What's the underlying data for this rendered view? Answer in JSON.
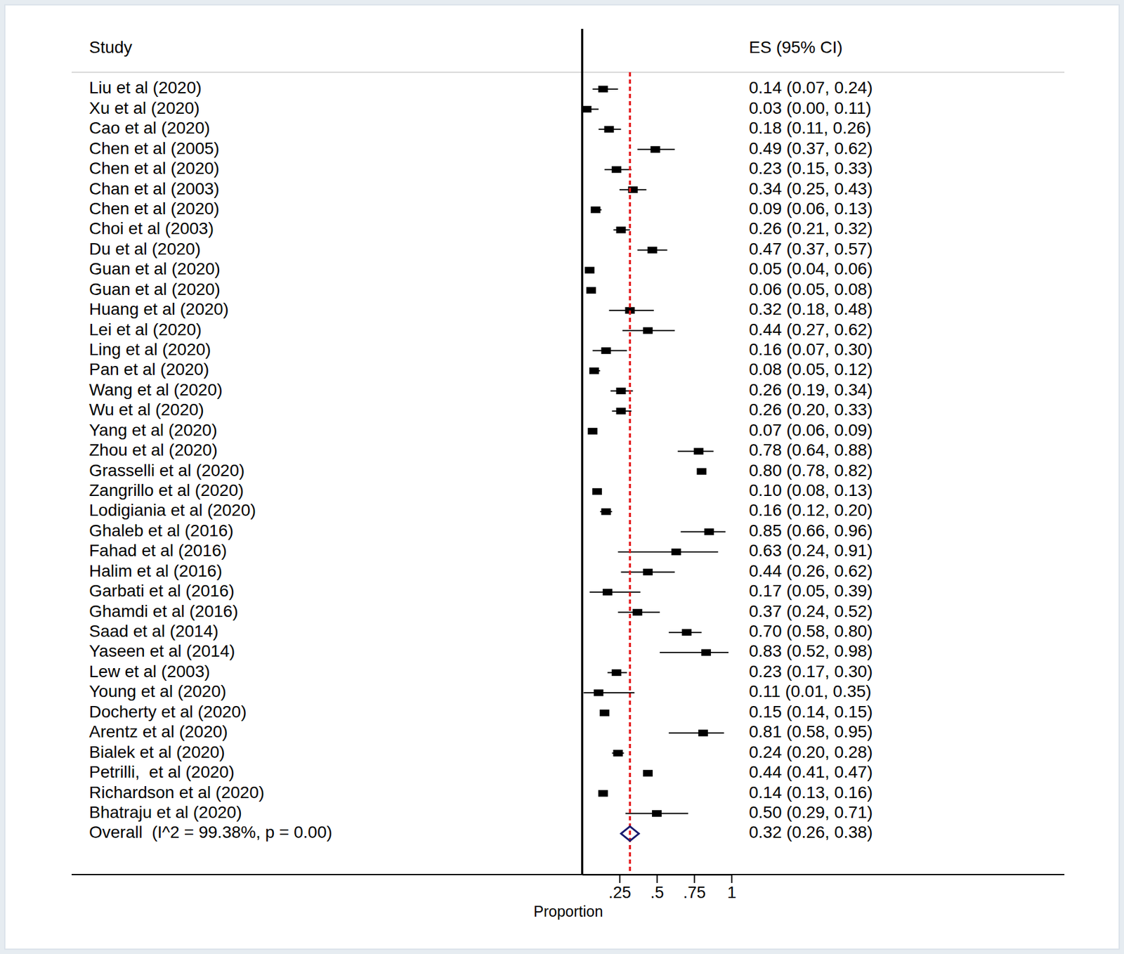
{
  "chart_data": {
    "type": "forest",
    "study_header": "Study",
    "es_header": "ES (95% CI)",
    "xlabel": "Proportion",
    "xlim": [
      0,
      1
    ],
    "xticks": [
      {
        "value": 0.25,
        "label": ".25"
      },
      {
        "value": 0.5,
        "label": ".5"
      },
      {
        "value": 0.75,
        "label": ".75"
      },
      1
    ],
    "color": "#000000",
    "categories": [
      "Liu et al (2020)",
      "Xu et al (2020)",
      "Cao et al (2020)",
      "Chen et al (2005)",
      "Chen et al (2020)",
      "Chan et al (2003)",
      "Chen et al (2020)",
      "Choi et al (2003)",
      "Du et al (2020)",
      "Guan et al (2020)",
      "Guan et al (2020)",
      "Huang et al (2020)",
      "Lei et al (2020)",
      "Ling et al (2020)",
      "Pan et al (2020)",
      "Wang et al (2020)",
      "Wu et al (2020)",
      "Yang et al (2020)",
      "Zhou et al (2020)",
      "Grasselli et al (2020)",
      "Zangrillo et al (2020)",
      "Lodigiania et al (2020)",
      "Ghaleb et al (2016)",
      "Fahad et al (2016)",
      "Halim et al (2016)",
      "Garbati et al (2016)",
      "Ghamdi et al (2016)",
      "Saad et al (2014)",
      "Yaseen et al (2014)",
      "Lew et al (2003)",
      "Young et al (2020)",
      "Docherty et al (2020)",
      "Arentz et al (2020)",
      "Bialek et al (2020)",
      "Petrilli,  et al (2020)",
      "Richardson et al (2020)",
      "Bhatraju et al (2020)"
    ],
    "values": [
      0.14,
      0.03,
      0.18,
      0.49,
      0.23,
      0.34,
      0.09,
      0.26,
      0.47,
      0.05,
      0.06,
      0.32,
      0.44,
      0.16,
      0.08,
      0.26,
      0.26,
      0.07,
      0.78,
      0.8,
      0.1,
      0.16,
      0.85,
      0.63,
      0.44,
      0.17,
      0.37,
      0.7,
      0.83,
      0.23,
      0.11,
      0.15,
      0.81,
      0.24,
      0.44,
      0.14,
      0.5
    ],
    "lower": [
      0.07,
      0.0,
      0.11,
      0.37,
      0.15,
      0.25,
      0.06,
      0.21,
      0.37,
      0.04,
      0.05,
      0.18,
      0.27,
      0.07,
      0.05,
      0.19,
      0.2,
      0.06,
      0.64,
      0.78,
      0.08,
      0.12,
      0.66,
      0.24,
      0.26,
      0.05,
      0.24,
      0.58,
      0.52,
      0.17,
      0.01,
      0.14,
      0.58,
      0.2,
      0.41,
      0.13,
      0.29
    ],
    "upper": [
      0.24,
      0.11,
      0.26,
      0.62,
      0.33,
      0.43,
      0.13,
      0.32,
      0.57,
      0.06,
      0.08,
      0.48,
      0.62,
      0.3,
      0.12,
      0.34,
      0.33,
      0.09,
      0.88,
      0.82,
      0.13,
      0.2,
      0.96,
      0.91,
      0.62,
      0.39,
      0.52,
      0.8,
      0.98,
      0.3,
      0.35,
      0.15,
      0.95,
      0.28,
      0.47,
      0.16,
      0.71
    ],
    "value_labels": [
      "0.14 (0.07, 0.24)",
      "0.03 (0.00, 0.11)",
      "0.18 (0.11, 0.26)",
      "0.49 (0.37, 0.62)",
      "0.23 (0.15, 0.33)",
      "0.34 (0.25, 0.43)",
      "0.09 (0.06, 0.13)",
      "0.26 (0.21, 0.32)",
      "0.47 (0.37, 0.57)",
      "0.05 (0.04, 0.06)",
      "0.06 (0.05, 0.08)",
      "0.32 (0.18, 0.48)",
      "0.44 (0.27, 0.62)",
      "0.16 (0.07, 0.30)",
      "0.08 (0.05, 0.12)",
      "0.26 (0.19, 0.34)",
      "0.26 (0.20, 0.33)",
      "0.07 (0.06, 0.09)",
      "0.78 (0.64, 0.88)",
      "0.80 (0.78, 0.82)",
      "0.10 (0.08, 0.13)",
      "0.16 (0.12, 0.20)",
      "0.85 (0.66, 0.96)",
      "0.63 (0.24, 0.91)",
      "0.44 (0.26, 0.62)",
      "0.17 (0.05, 0.39)",
      "0.37 (0.24, 0.52)",
      "0.70 (0.58, 0.80)",
      "0.83 (0.52, 0.98)",
      "0.23 (0.17, 0.30)",
      "0.11 (0.01, 0.35)",
      "0.15 (0.14, 0.15)",
      "0.81 (0.58, 0.95)",
      "0.24 (0.20, 0.28)",
      "0.44 (0.41, 0.47)",
      "0.14 (0.13, 0.16)",
      "0.50 (0.29, 0.71)"
    ],
    "data_labels": true,
    "overall": {
      "label": "Overall  (I^2 = 99.38%, p = 0.00)",
      "value": 0.32,
      "lower": 0.26,
      "upper": 0.38,
      "value_label": "0.32 (0.26, 0.38)",
      "color": "#1a1a6e",
      "line_style": "dashed"
    }
  }
}
